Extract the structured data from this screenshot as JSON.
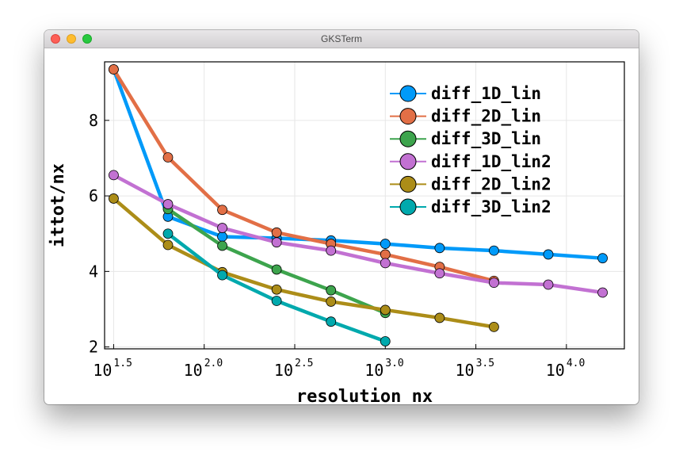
{
  "window": {
    "title": "GKSTerm"
  },
  "chart_data": {
    "type": "line",
    "title": "",
    "xlabel": "resolution nx",
    "ylabel": "ittot/nx",
    "xscale": "log10",
    "xlim_log10": [
      1.45,
      4.32
    ],
    "ylim": [
      1.95,
      9.55
    ],
    "xticks": [
      {
        "base": "10",
        "exp": "1.5",
        "value_log10": 1.5
      },
      {
        "base": "10",
        "exp": "2.0",
        "value_log10": 2.0
      },
      {
        "base": "10",
        "exp": "2.5",
        "value_log10": 2.5
      },
      {
        "base": "10",
        "exp": "3.0",
        "value_log10": 3.0
      },
      {
        "base": "10",
        "exp": "3.5",
        "value_log10": 3.5
      },
      {
        "base": "10",
        "exp": "4.0",
        "value_log10": 4.0
      }
    ],
    "yticks": [
      2,
      4,
      6,
      8
    ],
    "grid": true,
    "legend_position": "top-right",
    "series": [
      {
        "name": "diff_1D_lin",
        "color": "#009af9",
        "x_log10": [
          1.5,
          1.8,
          2.1,
          2.4,
          2.7,
          3.0,
          3.3,
          3.6,
          3.9,
          4.2
        ],
        "y": [
          9.35,
          5.45,
          4.92,
          4.88,
          4.82,
          4.73,
          4.62,
          4.55,
          4.45,
          4.35
        ]
      },
      {
        "name": "diff_2D_lin",
        "color": "#e26f46",
        "x_log10": [
          1.5,
          1.8,
          2.1,
          2.4,
          2.7,
          3.0,
          3.3,
          3.6
        ],
        "y": [
          9.35,
          7.02,
          5.63,
          5.03,
          4.73,
          4.45,
          4.12,
          3.75
        ]
      },
      {
        "name": "diff_3D_lin",
        "color": "#3da44d",
        "x_log10": [
          1.8,
          2.1,
          2.4,
          2.7,
          3.0
        ],
        "y": [
          5.65,
          4.68,
          4.05,
          3.5,
          2.9
        ]
      },
      {
        "name": "diff_1D_lin2",
        "color": "#c271d2",
        "x_log10": [
          1.5,
          1.8,
          2.1,
          2.4,
          2.7,
          3.0,
          3.3,
          3.6,
          3.9,
          4.2
        ],
        "y": [
          6.55,
          5.78,
          5.15,
          4.77,
          4.55,
          4.22,
          3.95,
          3.7,
          3.65,
          3.44
        ]
      },
      {
        "name": "diff_2D_lin2",
        "color": "#ac8d18",
        "x_log10": [
          1.5,
          1.8,
          2.1,
          2.4,
          2.7,
          3.0,
          3.3,
          3.6
        ],
        "y": [
          5.93,
          4.7,
          3.98,
          3.52,
          3.2,
          2.98,
          2.77,
          2.53
        ]
      },
      {
        "name": "diff_3D_lin2",
        "color": "#00a9ad",
        "x_log10": [
          1.8,
          2.1,
          2.4,
          2.7,
          3.0
        ],
        "y": [
          5.0,
          3.9,
          3.22,
          2.67,
          2.15
        ]
      }
    ]
  }
}
